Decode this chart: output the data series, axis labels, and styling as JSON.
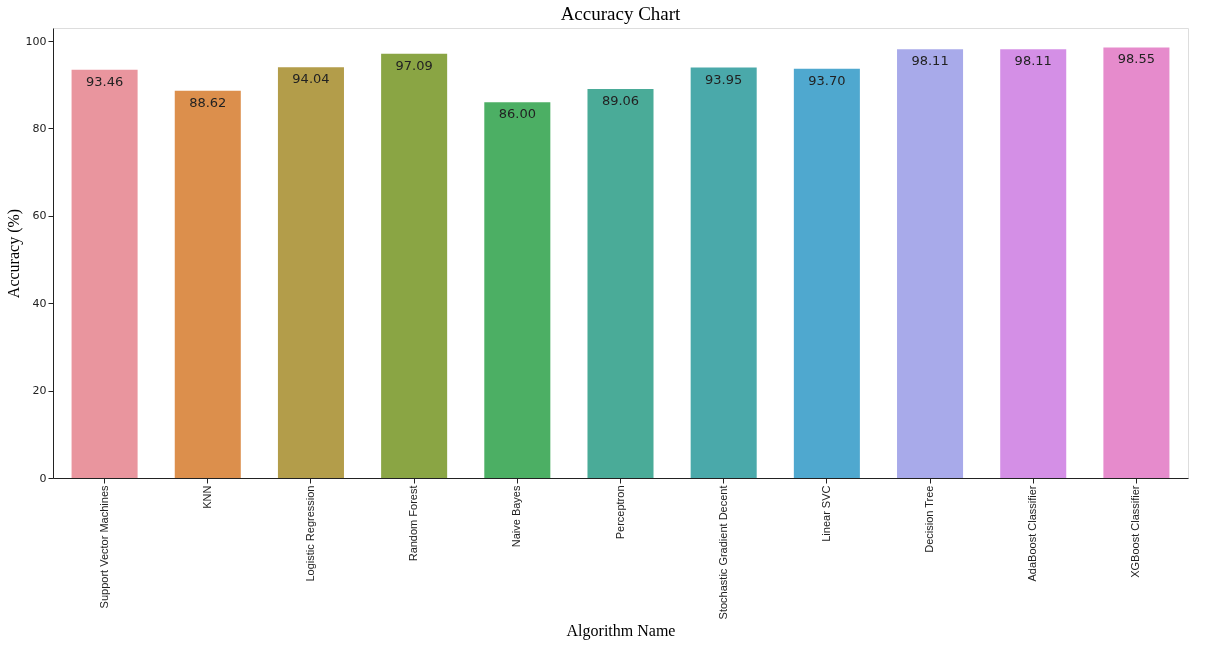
{
  "chart_data": {
    "type": "bar",
    "title": "Accuracy Chart",
    "xlabel": "Algorithm Name",
    "ylabel": "Accuracy (%)",
    "categories": [
      "Support Vector Machines",
      "KNN",
      "Logistic Regression",
      "Random Forest",
      "Naive Bayes",
      "Perceptron",
      "Stochastic Gradient Decent",
      "Linear SVC",
      "Decision Tree",
      "AdaBoost Classifier",
      "XGBoost Classifier"
    ],
    "values": [
      93.46,
      88.62,
      94.04,
      97.09,
      86.0,
      89.06,
      93.95,
      93.7,
      98.11,
      98.11,
      98.55
    ],
    "value_labels": [
      "93.46",
      "88.62",
      "94.04",
      "97.09",
      "86.00",
      "89.06",
      "93.95",
      "93.70",
      "98.11",
      "98.11",
      "98.55"
    ],
    "colors": [
      "#e9959e",
      "#dc8f4c",
      "#b39d4a",
      "#8aa544",
      "#4caf64",
      "#4aab98",
      "#4aa9aa",
      "#4fa8cf",
      "#a8aaea",
      "#d48fe6",
      "#e68bcc"
    ],
    "ylim": [
      0,
      103
    ],
    "yticks": [
      0,
      20,
      40,
      60,
      80,
      100
    ],
    "grid": false,
    "legend": false
  }
}
